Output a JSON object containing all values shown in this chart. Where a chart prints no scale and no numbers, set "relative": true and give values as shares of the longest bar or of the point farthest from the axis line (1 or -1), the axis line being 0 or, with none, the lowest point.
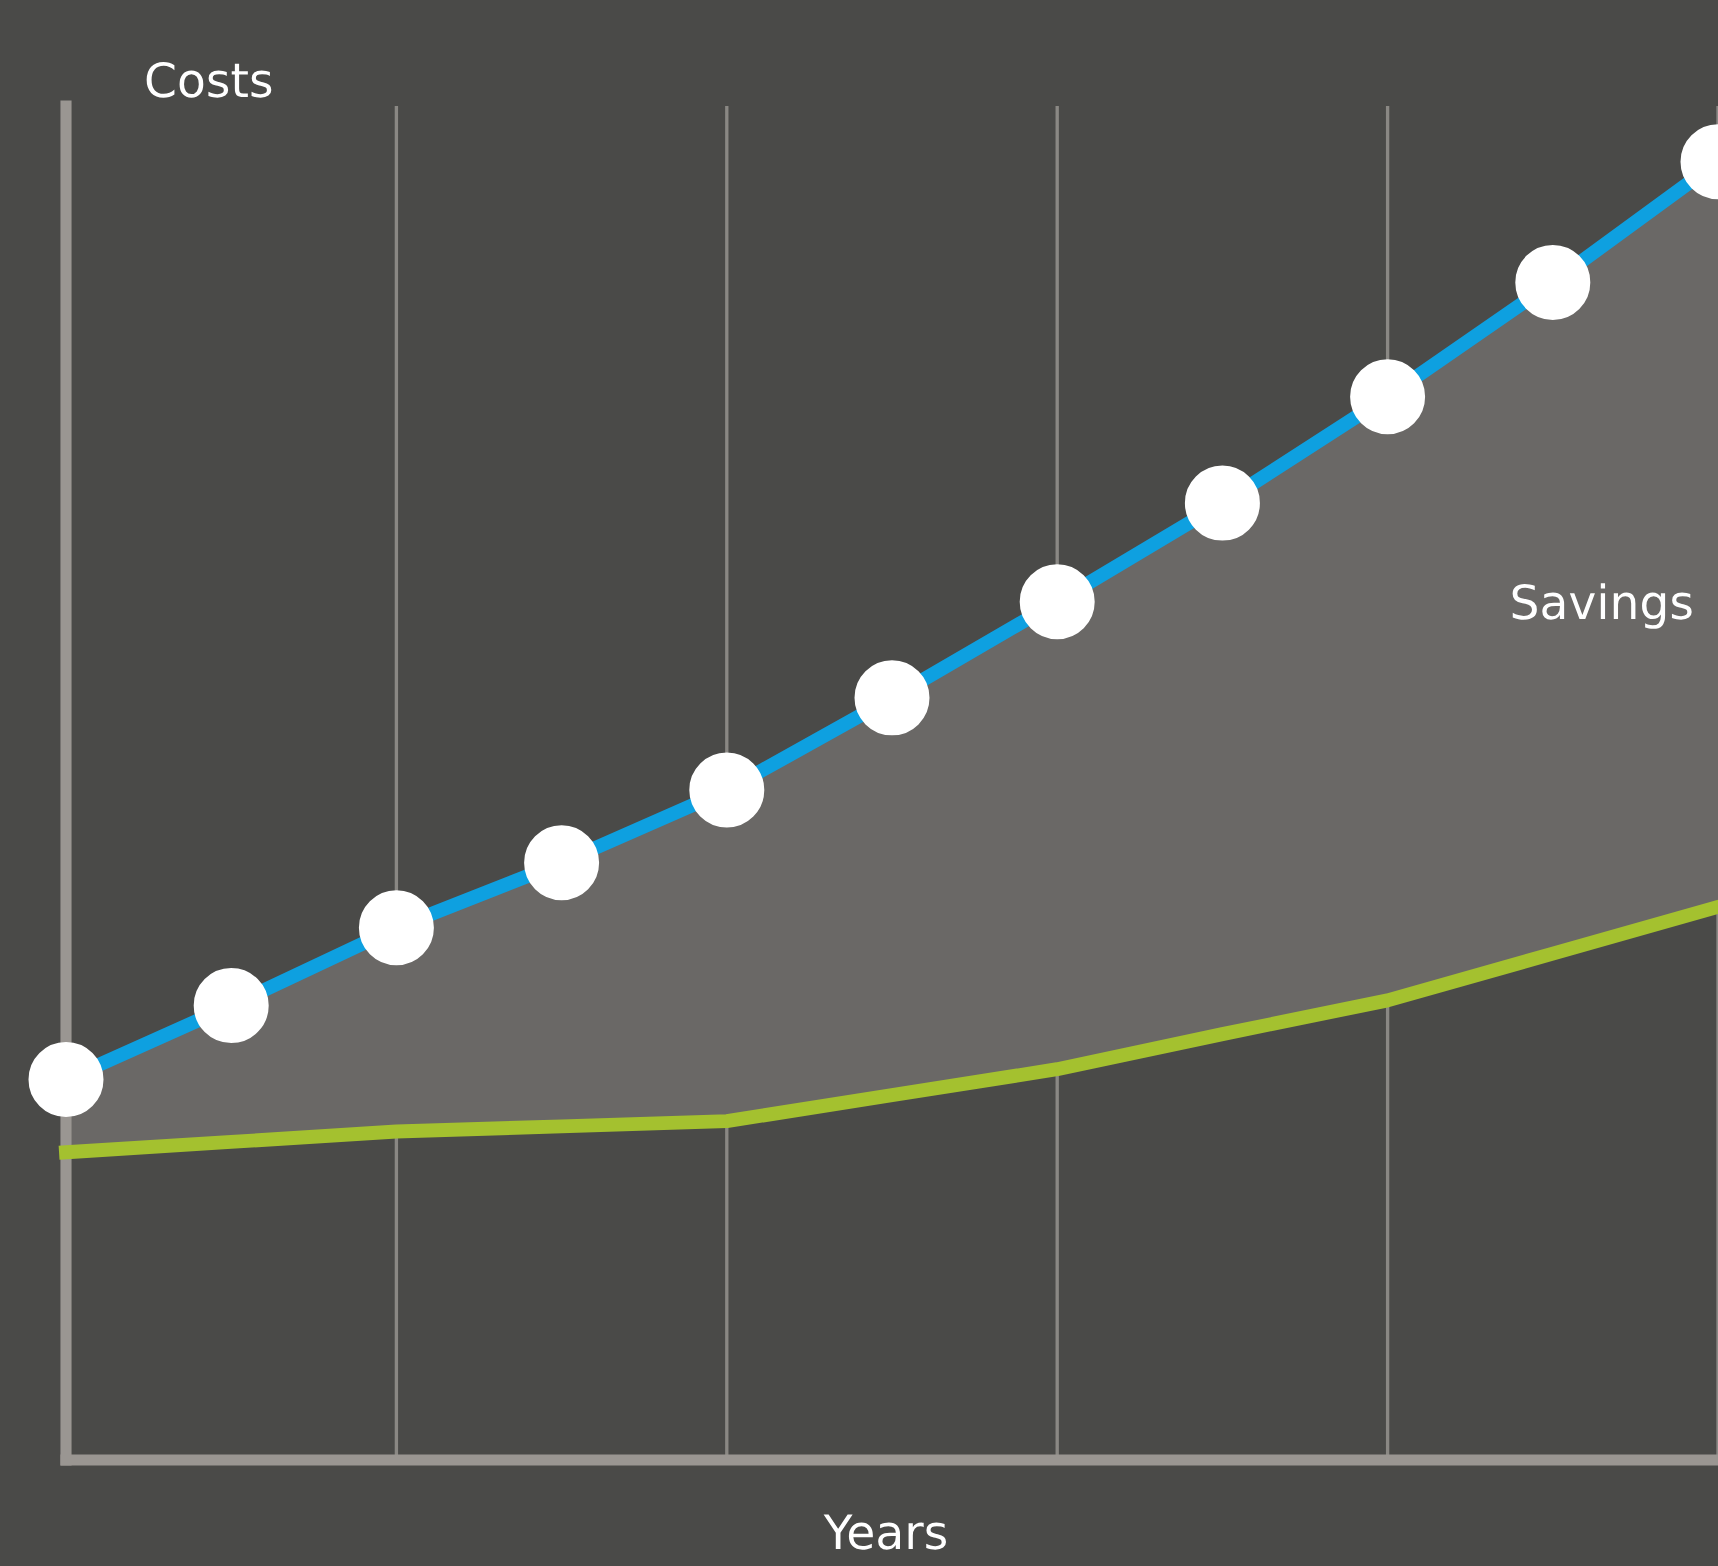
{
  "chart_data": {
    "type": "line",
    "relative": true,
    "ylabel": "Costs",
    "xlabel": "Years",
    "annotations": [
      "Savings"
    ],
    "categories": [
      null,
      null,
      null,
      null,
      null,
      null,
      null,
      null,
      null,
      null,
      null
    ],
    "grid": "x",
    "series": [
      {
        "color": "#0ea0e0",
        "marker": "circle",
        "values": [
          0.293,
          0.35,
          0.41,
          0.46,
          0.516,
          0.587,
          0.661,
          0.737,
          0.819,
          0.907,
          1.0
        ],
        "lower": [
          0.237,
          0.245,
          0.253,
          0.257,
          0.261,
          0.281,
          0.301,
          0.328,
          0.354,
          0.39,
          0.426
        ],
        "upper": [
          0.293,
          0.35,
          0.41,
          0.46,
          0.516,
          0.587,
          0.661,
          0.737,
          0.819,
          0.907,
          1.0
        ]
      },
      {
        "color": "#a4c12f",
        "marker": "none",
        "values": [
          0.237,
          0.245,
          0.253,
          0.257,
          0.261,
          0.281,
          0.301,
          0.328,
          0.354,
          0.39,
          0.426
        ]
      }
    ]
  }
}
